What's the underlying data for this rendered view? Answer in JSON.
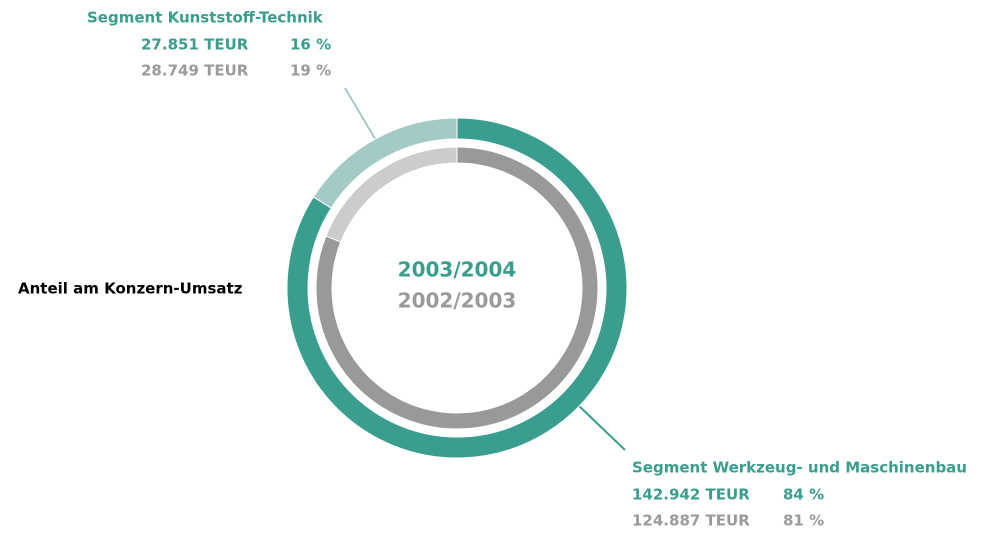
{
  "chart_data": {
    "type": "donut",
    "title": "Anteil am Konzern-Umsatz",
    "categories": [
      "Segment Kunststoff-Technik",
      "Segment Werkzeug- und Maschinenbau"
    ],
    "series": [
      {
        "name": "2003/2004",
        "color": "#3a9e8f",
        "colors": [
          "#a3cac5",
          "#3a9e8f"
        ],
        "values": [
          16,
          84
        ],
        "value_labels": [
          "16 %",
          "84 %"
        ],
        "amounts": [
          "27.851 TEUR",
          "142.942 TEUR"
        ]
      },
      {
        "name": "2002/2003",
        "color": "#9a9a9a",
        "colors": [
          "#cccccc",
          "#999999"
        ],
        "values": [
          19,
          81
        ],
        "value_labels": [
          "19 %",
          "81 %"
        ],
        "amounts": [
          "28.749 TEUR",
          "124.887 TEUR"
        ]
      }
    ]
  }
}
